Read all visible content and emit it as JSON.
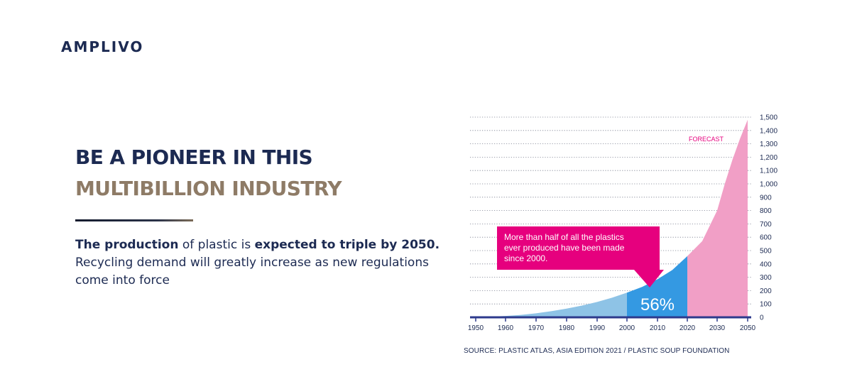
{
  "brand": {
    "logo_text": "AMPLIVO"
  },
  "headline": {
    "line1": "BE A PIONEER IN THIS",
    "line2": "MULTIBILLION INDUSTRY"
  },
  "body": {
    "p1_bold": "The production",
    "p1_mid": " of plastic is ",
    "p1_bold2": "expected to triple by 2050.",
    "p2": " Recycling demand will greatly increase as new regulations come into force"
  },
  "colors": {
    "navy": "#1c2a52",
    "gold": "#8e7b66",
    "light_blue": "#8ec3e6",
    "blue": "#3499e2",
    "pink": "#f19fc6",
    "magenta": "#e6007e"
  },
  "source": "SOURCE: PLASTIC ATLAS, ASIA EDITION 2021 / PLASTIC SOUP FOUNDATION",
  "chart_data": {
    "type": "area",
    "title": "",
    "xlabel": "",
    "ylabel": "",
    "x_ticks": [
      "1950",
      "1960",
      "1970",
      "1980",
      "1990",
      "2000",
      "2010",
      "2020",
      "2030",
      "2050"
    ],
    "y_ticks": [
      "0",
      "100",
      "200",
      "300",
      "400",
      "500",
      "600",
      "700",
      "800",
      "900",
      "1,000",
      "1,100",
      "1,200",
      "1,300",
      "1,400",
      "1,500"
    ],
    "ylim": [
      0,
      1500
    ],
    "grid": true,
    "y_axis_side": "right",
    "series": [
      {
        "color": "#8ec3e6",
        "x": [
          1950,
          1955,
          1960,
          1965,
          1970,
          1975,
          1980,
          1985,
          1990,
          1995,
          2000
        ],
        "values": [
          2,
          5,
          10,
          18,
          30,
          46,
          65,
          88,
          115,
          147,
          185
        ]
      },
      {
        "color": "#3499e2",
        "x": [
          2000,
          2005,
          2010,
          2015,
          2020
        ],
        "values": [
          185,
          228,
          285,
          355,
          458
        ]
      },
      {
        "color": "#f19fc6",
        "x": [
          2020,
          2025,
          2030,
          2035,
          2040,
          2045,
          2050
        ],
        "values": [
          458,
          570,
          800,
          1000,
          1180,
          1340,
          1480
        ]
      }
    ],
    "annotations": {
      "forecast_label": "FORECAST",
      "callout_text": "More than half of all the plastics ever produced have been made since 2000.",
      "percent_label": "56%"
    }
  }
}
